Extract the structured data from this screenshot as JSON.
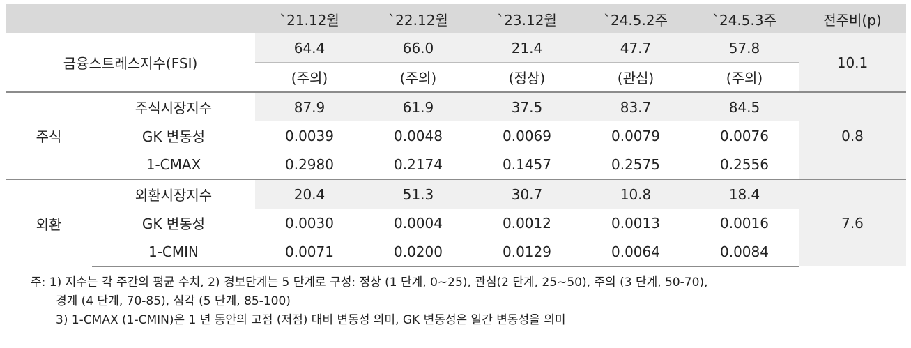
{
  "header": {
    "c0": "",
    "c1": "",
    "c2": "`21.12월",
    "c3": "`22.12월",
    "c4": "`23.12월",
    "c5": "`24.5.2주",
    "c6": "`24.5.3주",
    "c7": "전주비(p)"
  },
  "fsi": {
    "label": "금융스트레스지수(FSI)",
    "values": [
      "64.4",
      "66.0",
      "21.4",
      "47.7",
      "57.8"
    ],
    "levels": [
      "(주의)",
      "(주의)",
      "(정상)",
      "(관심)",
      "(주의)"
    ],
    "change": "10.1"
  },
  "stock": {
    "label": "주식",
    "change": "0.8",
    "rows": [
      {
        "name": "주식시장지수",
        "values": [
          "87.9",
          "61.9",
          "37.5",
          "83.7",
          "84.5"
        ]
      },
      {
        "name": "GK 변동성",
        "values": [
          "0.0039",
          "0.0048",
          "0.0069",
          "0.0079",
          "0.0076"
        ]
      },
      {
        "name": "1-CMAX",
        "values": [
          "0.2980",
          "0.2174",
          "0.1457",
          "0.2575",
          "0.2556"
        ]
      }
    ]
  },
  "fx": {
    "label": "외환",
    "change": "7.6",
    "rows": [
      {
        "name": "외환시장지수",
        "values": [
          "20.4",
          "51.3",
          "30.7",
          "10.8",
          "18.4"
        ]
      },
      {
        "name": "GK 변동성",
        "values": [
          "0.0030",
          "0.0004",
          "0.0012",
          "0.0013",
          "0.0016"
        ]
      },
      {
        "name": "1-CMIN",
        "values": [
          "0.0071",
          "0.0200",
          "0.0129",
          "0.0064",
          "0.0084"
        ]
      }
    ]
  },
  "notes": {
    "line1": "주: 1) 지수는 각 주간의 평균 수치, 2) 경보단계는 5 단계로 구성: 정상 (1 단계, 0~25), 관심(2 단계, 25~50), 주의 (3 단계, 50-70),",
    "line2": "경계 (4 단계, 70-85), 심각 (5 단계, 85-100)",
    "line3": "3) 1-CMAX (1-CMIN)은 1 년 동안의 고점 (저점) 대비 변동성 의미, GK 변동성은 일간 변동성을 의미"
  }
}
